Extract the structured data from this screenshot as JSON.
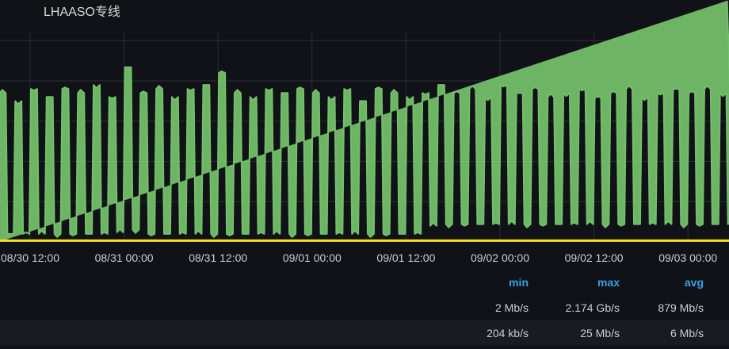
{
  "panel": {
    "title": "LHAASO专线"
  },
  "legend": {
    "headers": [
      "min",
      "max",
      "avg"
    ],
    "rows": [
      {
        "color": "#73bf69",
        "values": [
          "2 Mb/s",
          "2.174 Gb/s",
          "879 Mb/s"
        ]
      },
      {
        "color": "#fade2a",
        "values": [
          "204 kb/s",
          "25 Mb/s",
          "6 Mb/s"
        ]
      }
    ]
  },
  "chart_data": {
    "type": "area",
    "title": "LHAASO专线",
    "xlabel": "",
    "ylabel": "",
    "unit": "Gb/s",
    "ylim": [
      0,
      2.6
    ],
    "grid": true,
    "legend": "bottom-right table",
    "x_ticks": [
      "08/30 12:00",
      "08/31 00:00",
      "08/31 12:00",
      "09/01 00:00",
      "09/01 12:00",
      "09/02 00:00",
      "09/02 12:00",
      "09/03 00:00"
    ],
    "series": [
      {
        "color": "#73bf69",
        "x": [
          "08/30 08:00",
          "08/30 09:00",
          "08/30 10:00",
          "08/30 11:00",
          "08/30 12:00",
          "08/30 13:00",
          "08/30 14:00",
          "08/30 15:00",
          "08/30 16:00",
          "08/30 17:00",
          "08/30 18:00",
          "08/30 19:00",
          "08/30 20:00",
          "08/30 21:00",
          "08/30 22:00",
          "08/30 23:00",
          "08/31 00:00",
          "08/31 01:00",
          "08/31 02:00",
          "08/31 03:00",
          "08/31 04:00",
          "08/31 05:00",
          "08/31 06:00",
          "08/31 07:00",
          "08/31 08:00",
          "08/31 09:00",
          "08/31 10:00",
          "08/31 11:00",
          "08/31 12:00",
          "08/31 13:00",
          "08/31 14:00",
          "08/31 15:00",
          "08/31 16:00",
          "08/31 17:00",
          "08/31 18:00",
          "08/31 19:00",
          "08/31 20:00",
          "08/31 21:00",
          "08/31 22:00",
          "08/31 23:00",
          "09/01 00:00",
          "09/01 01:00",
          "09/01 02:00",
          "09/01 03:00",
          "09/01 04:00",
          "09/01 05:00",
          "09/01 06:00",
          "09/01 07:00",
          "09/01 08:00",
          "09/01 09:00",
          "09/01 10:00",
          "09/01 11:00",
          "09/01 12:00",
          "09/01 13:00",
          "09/01 14:00",
          "09/01 15:00",
          "09/01 16:00",
          "09/01 17:00",
          "09/01 18:00",
          "09/01 19:00",
          "09/01 20:00",
          "09/01 21:00",
          "09/01 22:00",
          "09/01 23:00",
          "09/02 00:00",
          "09/02 01:00",
          "09/02 02:00",
          "09/02 03:00",
          "09/02 04:00",
          "09/02 05:00",
          "09/02 06:00",
          "09/02 07:00",
          "09/02 08:00",
          "09/02 09:00",
          "09/02 10:00",
          "09/02 11:00",
          "09/02 12:00",
          "09/02 13:00",
          "09/02 14:00",
          "09/02 15:00",
          "09/02 16:00",
          "09/02 17:00",
          "09/02 18:00",
          "09/02 19:00",
          "09/02 20:00",
          "09/02 21:00",
          "09/02 22:00",
          "09/02 23:00",
          "09/03 00:00",
          "09/03 01:00",
          "09/03 02:00",
          "09/03 03:00",
          "09/03 04:00",
          "09/03 05:00"
        ],
        "values": [
          1.85,
          0.1,
          1.75,
          0.1,
          1.9,
          0.1,
          1.8,
          0.1,
          1.9,
          0.1,
          1.85,
          0.1,
          1.95,
          0.1,
          1.8,
          0.12,
          2.17,
          0.15,
          1.85,
          0.1,
          1.9,
          0.1,
          1.8,
          0.1,
          1.9,
          0.1,
          1.95,
          0.1,
          2.1,
          0.1,
          1.85,
          0.1,
          1.8,
          0.1,
          1.9,
          0.1,
          1.85,
          0.1,
          1.9,
          0.1,
          1.85,
          0.1,
          1.8,
          0.1,
          1.9,
          0.1,
          1.75,
          0.1,
          1.9,
          0.1,
          1.85,
          0.1,
          1.8,
          0.1,
          1.85,
          0.2,
          1.95,
          0.22,
          1.85,
          0.22,
          1.9,
          0.22,
          1.8,
          0.22,
          1.95,
          0.22,
          1.85,
          0.22,
          1.9,
          0.22,
          1.8,
          0.22,
          1.85,
          0.22,
          1.9,
          0.22,
          1.8,
          0.22,
          1.85,
          0.22,
          1.9,
          0.22,
          1.8,
          0.22,
          1.85,
          0.22,
          1.9,
          0.22,
          1.85,
          0.22,
          1.9,
          0.22,
          1.85,
          0.22
        ]
      },
      {
        "color": "#fade2a",
        "x": [
          "08/30 08:00",
          "09/03 05:00"
        ],
        "values": [
          0.006,
          0.006
        ]
      }
    ]
  }
}
